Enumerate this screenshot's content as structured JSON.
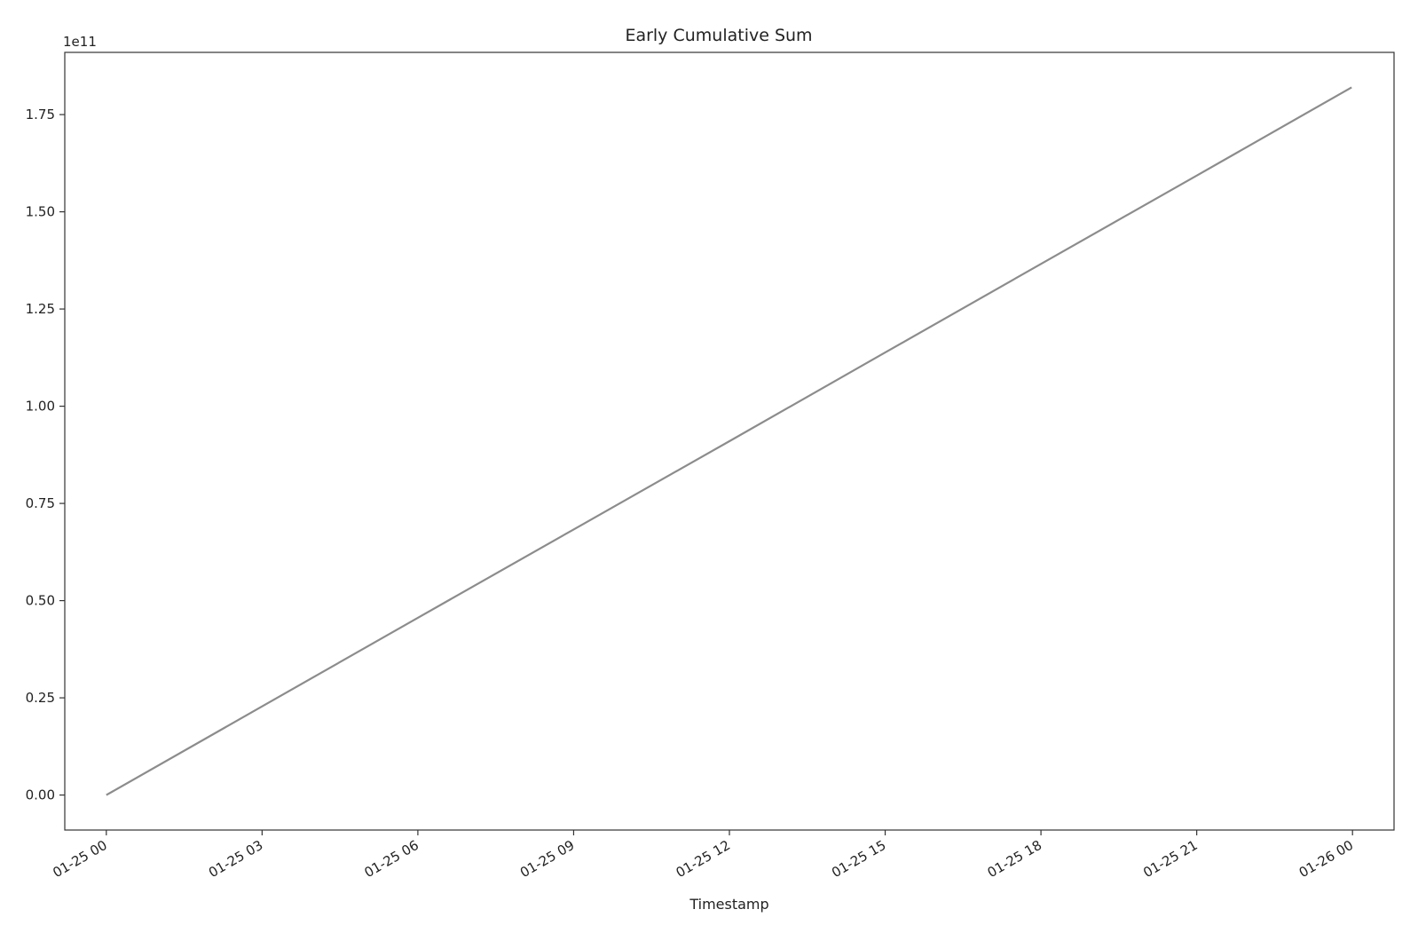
{
  "chart_data": {
    "type": "line",
    "title": "Early Cumulative Sum",
    "xlabel": "Timestamp",
    "ylabel": "",
    "y_offset_label": "1e11",
    "y_scale": 100000000000,
    "grid": false,
    "legend": "none",
    "line_color": "#8c8c8c",
    "xlim": [
      "2024-01-24 23:12",
      "2024-01-26 00:48"
    ],
    "ylim": [
      -9000000000,
      191000000000
    ],
    "x_ticks": [
      {
        "value": "2024-01-25 00:00",
        "label": "01-25 00"
      },
      {
        "value": "2024-01-25 03:00",
        "label": "01-25 03"
      },
      {
        "value": "2024-01-25 06:00",
        "label": "01-25 06"
      },
      {
        "value": "2024-01-25 09:00",
        "label": "01-25 09"
      },
      {
        "value": "2024-01-25 12:00",
        "label": "01-25 12"
      },
      {
        "value": "2024-01-25 15:00",
        "label": "01-25 15"
      },
      {
        "value": "2024-01-25 18:00",
        "label": "01-25 18"
      },
      {
        "value": "2024-01-25 21:00",
        "label": "01-25 21"
      },
      {
        "value": "2024-01-26 00:00",
        "label": "01-26 00"
      }
    ],
    "y_ticks": [
      {
        "value": 0,
        "label": "0.00"
      },
      {
        "value": 25000000000,
        "label": "0.25"
      },
      {
        "value": 50000000000,
        "label": "0.50"
      },
      {
        "value": 75000000000,
        "label": "0.75"
      },
      {
        "value": 100000000000,
        "label": "1.00"
      },
      {
        "value": 125000000000,
        "label": "1.25"
      },
      {
        "value": 150000000000,
        "label": "1.50"
      },
      {
        "value": 175000000000,
        "label": "1.75"
      }
    ],
    "series": [
      {
        "x": [
          "2024-01-25 00:00",
          "2024-01-25 03:00",
          "2024-01-25 06:00",
          "2024-01-25 09:00",
          "2024-01-25 12:00",
          "2024-01-25 15:00",
          "2024-01-25 18:00",
          "2024-01-25 21:00",
          "2024-01-25 23:59"
        ],
        "y": [
          0,
          22800000000,
          45600000000,
          68300000000,
          91000000000,
          113800000000,
          136600000000,
          159300000000,
          182000000000
        ]
      }
    ]
  }
}
